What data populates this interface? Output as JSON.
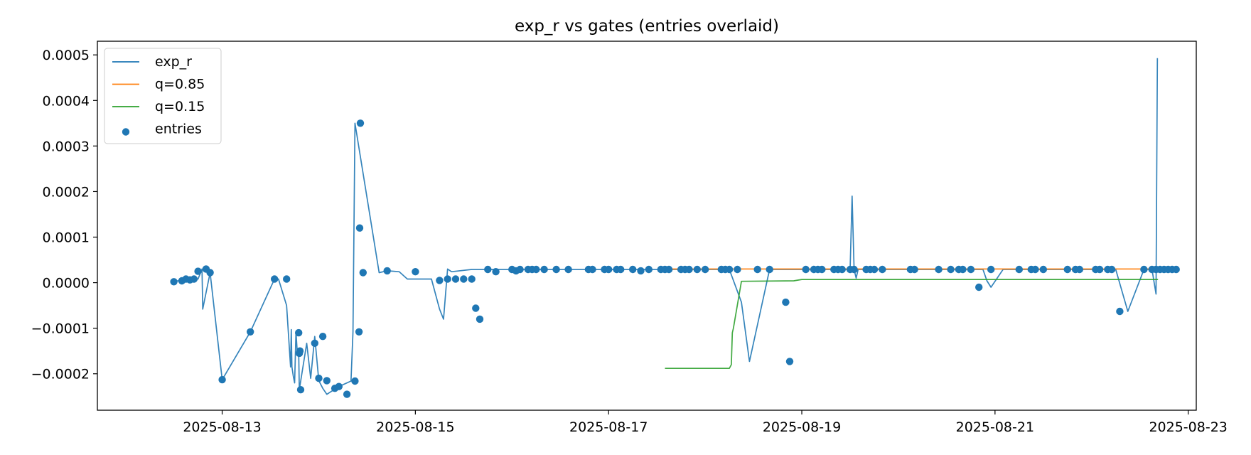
{
  "chart_data": {
    "type": "line",
    "title": "exp_r vs gates (entries overlaid)",
    "xlabel": "",
    "ylabel": "",
    "x_axis_type": "date",
    "xlim": [
      "2025-08-11T17:00",
      "2025-08-23T02:00"
    ],
    "ylim": [
      -0.00028,
      0.00053
    ],
    "x_ticks": [
      "2025-08-13",
      "2025-08-15",
      "2025-08-17",
      "2025-08-19",
      "2025-08-21",
      "2025-08-23"
    ],
    "y_ticks": [
      -0.0002,
      -0.0001,
      0.0,
      0.0001,
      0.0002,
      0.0003,
      0.0004,
      0.0005
    ],
    "y_tick_labels": [
      "−0.0002",
      "−0.0001",
      "0.0000",
      "0.0001",
      "0.0002",
      "0.0003",
      "0.0004",
      "0.0005"
    ],
    "grid": false,
    "legend_position": "upper-left",
    "series": [
      {
        "name": "exp_r",
        "kind": "line",
        "color": "#1f77b4",
        "x": [
          "2025-08-12T12:00",
          "2025-08-12T15:00",
          "2025-08-12T18:00",
          "2025-08-12T19:00",
          "2025-08-12T19:10",
          "2025-08-12T21:00",
          "2025-08-13T00:00",
          "2025-08-13T07:00",
          "2025-08-13T13:00",
          "2025-08-13T14:00",
          "2025-08-13T16:00",
          "2025-08-13T17:00",
          "2025-08-13T17:10",
          "2025-08-13T17:20",
          "2025-08-13T17:40",
          "2025-08-13T18:00",
          "2025-08-13T18:20",
          "2025-08-13T18:40",
          "2025-08-13T19:00",
          "2025-08-13T19:10",
          "2025-08-13T21:00",
          "2025-08-13T22:00",
          "2025-08-13T23:00",
          "2025-08-14T00:00",
          "2025-08-14T01:00",
          "2025-08-14T02:00",
          "2025-08-14T05:00",
          "2025-08-14T08:00",
          "2025-08-14T08:30",
          "2025-08-14T09:00",
          "2025-08-14T15:00",
          "2025-08-14T17:00",
          "2025-08-14T20:00",
          "2025-08-14T22:00",
          "2025-08-15T02:00",
          "2025-08-15T04:00",
          "2025-08-15T06:00",
          "2025-08-15T07:00",
          "2025-08-15T08:00",
          "2025-08-15T09:00",
          "2025-08-15T14:00",
          "2025-08-15T19:00",
          "2025-08-15T23:00",
          "2025-08-16T00:00",
          "2025-08-16T02:00",
          "2025-08-16T03:00",
          "2025-08-16T04:00",
          "2025-08-16T05:00",
          "2025-08-16T06:00",
          "2025-08-16T08:00",
          "2025-08-16T10:00",
          "2025-08-16T11:00",
          "2025-08-16T13:00",
          "2025-08-16T18:00",
          "2025-08-17T14:00",
          "2025-08-17T20:00",
          "2025-08-18T06:00",
          "2025-08-18T09:00",
          "2025-08-18T11:00",
          "2025-08-18T16:00",
          "2025-08-18T20:00",
          "2025-08-18T21:00",
          "2025-08-18T22:00",
          "2025-08-19T00:00",
          "2025-08-19T12:00",
          "2025-08-19T12:30",
          "2025-08-19T13:00",
          "2025-08-19T13:30",
          "2025-08-19T14:00",
          "2025-08-19T15:00",
          "2025-08-20T18:00",
          "2025-08-20T21:00",
          "2025-08-20T22:00",
          "2025-08-20T23:00",
          "2025-08-21T02:00",
          "2025-08-21T14:00",
          "2025-08-21T16:00",
          "2025-08-21T16:30",
          "2025-08-22T00:00",
          "2025-08-22T01:00",
          "2025-08-22T06:00",
          "2025-08-22T09:00",
          "2025-08-22T13:00",
          "2025-08-22T15:00",
          "2025-08-22T16:00",
          "2025-08-22T16:20"
        ],
        "y": [
          2e-06,
          8e-06,
          8e-06,
          3e-05,
          -5.8e-05,
          2.2e-05,
          -0.000213,
          -0.000108,
          8e-06,
          8e-06,
          -5e-05,
          -0.000185,
          -0.000103,
          -0.000185,
          -0.000205,
          -0.00022,
          -0.000108,
          -0.000155,
          -0.00015,
          -0.000235,
          -0.000133,
          -0.00021,
          -0.000118,
          -0.000215,
          -0.000232,
          -0.000245,
          -0.000228,
          -0.000216,
          -0.000108,
          0.00035,
          2.2e-05,
          2.6e-05,
          2.4e-05,
          8e-06,
          8e-06,
          8e-06,
          -5.8e-05,
          -8e-05,
          3e-05,
          2.4e-05,
          2.9e-05,
          2.9e-05,
          2.9e-05,
          2.9e-05,
          2.9e-05,
          2.9e-05,
          2.9e-05,
          2.9e-05,
          2.9e-05,
          2.9e-05,
          2.9e-05,
          2.9e-05,
          2.9e-05,
          2.9e-05,
          2.9e-05,
          2.9e-05,
          2.9e-05,
          -4.3e-05,
          -0.000173,
          2.9e-05,
          2.9e-05,
          2.9e-05,
          2.9e-05,
          2.9e-05,
          2.9e-05,
          0.00019,
          2.9e-05,
          1e-05,
          2.9e-05,
          2.9e-05,
          2.9e-05,
          2.9e-05,
          4e-06,
          -1e-05,
          2.9e-05,
          2.9e-05,
          2.9e-05,
          2.9e-05,
          2.9e-05,
          2.9e-05,
          2.9e-05,
          -6.3e-05,
          2.9e-05,
          2.9e-05,
          -2.5e-05,
          0.000493
        ]
      },
      {
        "name": "q=0.85",
        "kind": "line",
        "color": "#ff7f0e",
        "x": [
          "2025-08-17T14:00",
          "2025-08-22T16:30"
        ],
        "y": [
          3e-05,
          3e-05
        ]
      },
      {
        "name": "q=0.15",
        "kind": "line",
        "color": "#2ca02c",
        "x": [
          "2025-08-17T14:00",
          "2025-08-18T06:00",
          "2025-08-18T06:30",
          "2025-08-18T06:45",
          "2025-08-18T07:00",
          "2025-08-18T09:00",
          "2025-08-18T22:00",
          "2025-08-19T00:00",
          "2025-08-22T16:30"
        ],
        "y": [
          -0.000188,
          -0.000188,
          -0.00018,
          -0.00011,
          -0.0001,
          3e-06,
          4e-06,
          7e-06,
          7e-06
        ]
      },
      {
        "name": "entries",
        "kind": "scatter",
        "color": "#1f77b4",
        "x": [
          "2025-08-12T12:00",
          "2025-08-12T14:00",
          "2025-08-12T15:00",
          "2025-08-12T16:00",
          "2025-08-12T17:00",
          "2025-08-12T18:00",
          "2025-08-12T20:00",
          "2025-08-12T21:00",
          "2025-08-13T00:00",
          "2025-08-13T07:00",
          "2025-08-13T13:00",
          "2025-08-13T16:00",
          "2025-08-13T19:00",
          "2025-08-13T19:10",
          "2025-08-13T19:20",
          "2025-08-13T19:30",
          "2025-08-13T23:00",
          "2025-08-14T00:00",
          "2025-08-14T01:00",
          "2025-08-14T02:00",
          "2025-08-14T04:00",
          "2025-08-14T05:00",
          "2025-08-14T07:00",
          "2025-08-14T09:00",
          "2025-08-14T10:00",
          "2025-08-14T10:10",
          "2025-08-14T10:20",
          "2025-08-14T11:00",
          "2025-08-14T17:00",
          "2025-08-15T00:00",
          "2025-08-15T06:00",
          "2025-08-15T08:00",
          "2025-08-15T10:00",
          "2025-08-15T12:00",
          "2025-08-15T14:00",
          "2025-08-15T15:00",
          "2025-08-15T16:00",
          "2025-08-15T18:00",
          "2025-08-15T20:00",
          "2025-08-16T00:00",
          "2025-08-16T01:00",
          "2025-08-16T02:00",
          "2025-08-16T04:00",
          "2025-08-16T05:00",
          "2025-08-16T06:00",
          "2025-08-16T08:00",
          "2025-08-16T11:00",
          "2025-08-16T14:00",
          "2025-08-16T19:00",
          "2025-08-16T20:00",
          "2025-08-16T23:00",
          "2025-08-17T00:00",
          "2025-08-17T02:00",
          "2025-08-17T03:00",
          "2025-08-17T06:00",
          "2025-08-17T08:00",
          "2025-08-17T10:00",
          "2025-08-17T13:00",
          "2025-08-17T14:00",
          "2025-08-17T15:00",
          "2025-08-17T18:00",
          "2025-08-17T19:00",
          "2025-08-17T20:00",
          "2025-08-17T22:00",
          "2025-08-18T00:00",
          "2025-08-18T04:00",
          "2025-08-18T05:00",
          "2025-08-18T06:00",
          "2025-08-18T08:00",
          "2025-08-18T13:00",
          "2025-08-18T16:00",
          "2025-08-18T20:00",
          "2025-08-18T21:00",
          "2025-08-19T01:00",
          "2025-08-19T03:00",
          "2025-08-19T04:00",
          "2025-08-19T05:00",
          "2025-08-19T08:00",
          "2025-08-19T09:00",
          "2025-08-19T10:00",
          "2025-08-19T12:00",
          "2025-08-19T13:00",
          "2025-08-19T16:00",
          "2025-08-19T17:00",
          "2025-08-19T18:00",
          "2025-08-19T20:00",
          "2025-08-20T03:00",
          "2025-08-20T04:00",
          "2025-08-20T10:00",
          "2025-08-20T13:00",
          "2025-08-20T15:00",
          "2025-08-20T16:00",
          "2025-08-20T18:00",
          "2025-08-20T20:00",
          "2025-08-20T23:00",
          "2025-08-21T06:00",
          "2025-08-21T09:00",
          "2025-08-21T10:00",
          "2025-08-21T12:00",
          "2025-08-21T18:00",
          "2025-08-21T20:00",
          "2025-08-21T21:00",
          "2025-08-22T01:00",
          "2025-08-22T02:00",
          "2025-08-22T04:00",
          "2025-08-22T05:00",
          "2025-08-22T07:00",
          "2025-08-22T13:00",
          "2025-08-22T15:00",
          "2025-08-22T16:00",
          "2025-08-22T17:00",
          "2025-08-22T18:00",
          "2025-08-22T19:00",
          "2025-08-22T20:00",
          "2025-08-22T21:00"
        ],
        "y": [
          2e-06,
          4e-06,
          8e-06,
          6e-06,
          8e-06,
          2.5e-05,
          3e-05,
          2.2e-05,
          -0.000213,
          -0.000108,
          8e-06,
          8e-06,
          -0.00011,
          -0.000155,
          -0.00015,
          -0.000235,
          -0.000133,
          -0.00021,
          -0.000118,
          -0.000215,
          -0.000232,
          -0.000228,
          -0.000245,
          -0.000216,
          -0.000108,
          0.00012,
          0.00035,
          2.2e-05,
          2.6e-05,
          2.4e-05,
          5e-06,
          8e-06,
          8e-06,
          8e-06,
          8e-06,
          -5.6e-05,
          -8e-05,
          2.9e-05,
          2.4e-05,
          2.9e-05,
          2.6e-05,
          2.9e-05,
          2.9e-05,
          2.9e-05,
          2.9e-05,
          2.9e-05,
          2.9e-05,
          2.9e-05,
          2.9e-05,
          2.9e-05,
          2.9e-05,
          2.9e-05,
          2.9e-05,
          2.9e-05,
          2.9e-05,
          2.6e-05,
          2.9e-05,
          2.9e-05,
          2.9e-05,
          2.9e-05,
          2.9e-05,
          2.9e-05,
          2.9e-05,
          2.9e-05,
          2.9e-05,
          2.9e-05,
          2.9e-05,
          2.9e-05,
          2.9e-05,
          2.9e-05,
          2.9e-05,
          -4.3e-05,
          -0.000173,
          2.9e-05,
          2.9e-05,
          2.9e-05,
          2.9e-05,
          2.9e-05,
          2.9e-05,
          2.9e-05,
          2.9e-05,
          2.9e-05,
          2.9e-05,
          2.9e-05,
          2.9e-05,
          2.9e-05,
          2.9e-05,
          2.9e-05,
          2.9e-05,
          2.9e-05,
          2.9e-05,
          2.9e-05,
          2.9e-05,
          -1e-05,
          2.9e-05,
          2.9e-05,
          2.9e-05,
          2.9e-05,
          2.9e-05,
          2.9e-05,
          2.9e-05,
          2.9e-05,
          2.9e-05,
          2.9e-05,
          2.9e-05,
          2.9e-05,
          -6.3e-05,
          2.9e-05,
          2.9e-05,
          2.9e-05,
          2.9e-05,
          2.9e-05,
          2.9e-05,
          2.9e-05,
          2.9e-05
        ]
      }
    ]
  }
}
